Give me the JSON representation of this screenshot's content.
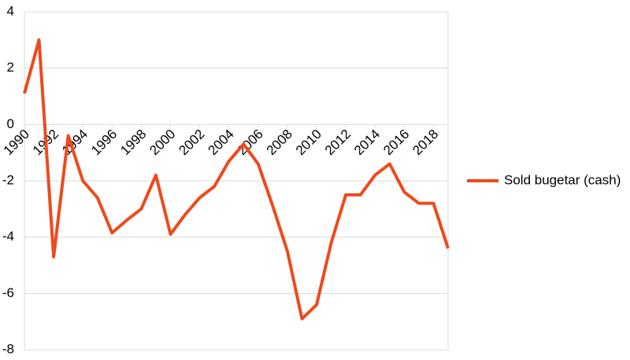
{
  "chart_data": {
    "type": "line",
    "x": [
      1990,
      1991,
      1992,
      1993,
      1994,
      1995,
      1996,
      1997,
      1998,
      1999,
      2000,
      2001,
      2002,
      2003,
      2004,
      2005,
      2006,
      2007,
      2008,
      2009,
      2010,
      2011,
      2012,
      2013,
      2014,
      2015,
      2016,
      2017,
      2018,
      2019
    ],
    "series": [
      {
        "name": "Sold bugetar (cash)",
        "color": "#ee4a1c",
        "values": [
          1.1,
          3.0,
          -4.7,
          -0.4,
          -2.0,
          -2.6,
          -3.85,
          -3.4,
          -3.0,
          -1.8,
          -3.9,
          -3.2,
          -2.6,
          -2.2,
          -1.3,
          -0.7,
          -1.4,
          -2.9,
          -4.5,
          -6.9,
          -6.4,
          -4.2,
          -2.5,
          -2.5,
          -1.8,
          -1.4,
          -2.4,
          -2.8,
          -2.8,
          -4.4
        ]
      }
    ],
    "xlim": [
      1990,
      2019
    ],
    "xticks": [
      1990,
      1992,
      1994,
      1996,
      1998,
      2000,
      2002,
      2004,
      2006,
      2008,
      2010,
      2012,
      2014,
      2016,
      2018
    ],
    "ylim": [
      -8,
      4
    ],
    "yticks": [
      -8,
      -6,
      -4,
      -2,
      0,
      2,
      4
    ],
    "grid": true,
    "legend": "right"
  }
}
